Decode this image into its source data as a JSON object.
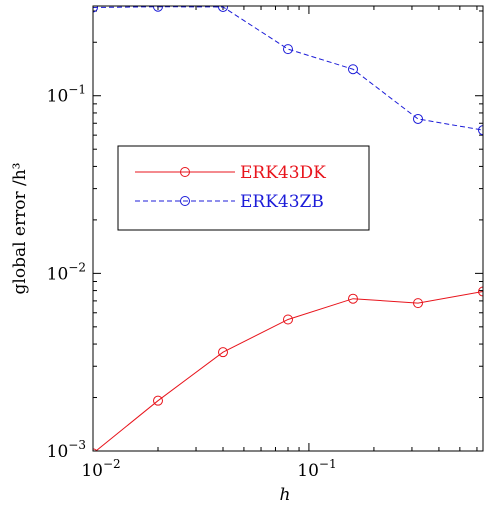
{
  "chart_data": {
    "type": "line",
    "xscale": "log",
    "yscale": "log",
    "xlim": [
      0.01,
      0.64
    ],
    "ylim": [
      0.001,
      0.32
    ],
    "xlabel": "h",
    "ylabel": "global error /h³",
    "xticks": [
      {
        "value": 0.01,
        "base": "10",
        "exp": "−2"
      },
      {
        "value": 0.1,
        "base": "10",
        "exp": "−1"
      }
    ],
    "yticks": [
      {
        "value": 0.001,
        "base": "10",
        "exp": "−3"
      },
      {
        "value": 0.01,
        "base": "10",
        "exp": "−2"
      },
      {
        "value": 0.1,
        "base": "10",
        "exp": "−1"
      }
    ],
    "legend_position": "center-left",
    "x": [
      0.01,
      0.02,
      0.04,
      0.08,
      0.16,
      0.32,
      0.64
    ],
    "series": [
      {
        "name": "ERK43DK",
        "color": "#e8141c",
        "dash": "solid",
        "marker": "circle",
        "values": [
          0.00097,
          0.00192,
          0.0036,
          0.0055,
          0.0072,
          0.0068,
          0.0079
        ]
      },
      {
        "name": "ERK43ZB",
        "color": "#1c1cd8",
        "dash": "dashed",
        "marker": "circle",
        "values": [
          0.314,
          0.317,
          0.316,
          0.183,
          0.141,
          0.074,
          0.064
        ]
      }
    ]
  }
}
